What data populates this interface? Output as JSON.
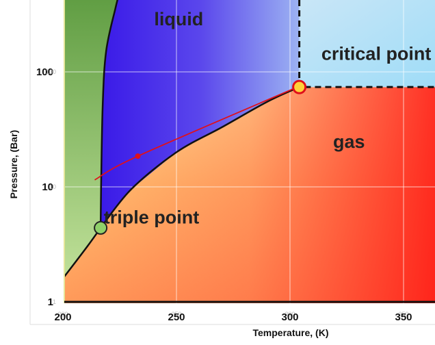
{
  "chart_data": {
    "type": "line",
    "title": "",
    "xlabel": "Temperature, (K)",
    "ylabel": "Pressure, (Bar)",
    "x_scale": "linear",
    "y_scale": "log",
    "xlim": [
      200,
      365
    ],
    "ylim": [
      1,
      500
    ],
    "x_ticks": [
      200,
      250,
      300,
      350
    ],
    "x_tick_labels": [
      "200",
      "250",
      "300",
      "350"
    ],
    "y_ticks": [
      1,
      10,
      100
    ],
    "y_tick_labels": [
      "1",
      "10",
      "100"
    ],
    "grid": true,
    "series": [
      {
        "values": [
          [
            200,
            1.6
          ],
          [
            210,
            2.9
          ],
          [
            216.6,
            4.4
          ]
        ]
      },
      {
        "values": [
          [
            216.6,
            4.4
          ],
          [
            230,
            9.5
          ],
          [
            250,
            20
          ],
          [
            270,
            33
          ],
          [
            290,
            55
          ],
          [
            304.1,
            73.8
          ]
        ]
      },
      {
        "values": [
          [
            216.6,
            4.4
          ],
          [
            216.8,
            10
          ],
          [
            217.5,
            50
          ],
          [
            219,
            150
          ],
          [
            223,
            350
          ],
          [
            225,
            500
          ]
        ]
      },
      {
        "values": [
          [
            214,
            11.5
          ],
          [
            233,
            18.5
          ],
          [
            302,
            72
          ]
        ]
      }
    ],
    "points": [
      {
        "label": "triple point",
        "x": 216.6,
        "y": 4.4,
        "color": "#8fd16a"
      },
      {
        "label": "critical point",
        "x": 304.1,
        "y": 73.8,
        "color": "#ffd23a"
      },
      {
        "x": 233,
        "y": 18.5,
        "color": "#e0101a"
      }
    ],
    "regions": [
      {
        "label": "liquid",
        "x": 251,
        "y": 280
      },
      {
        "label": "critical point",
        "x": 338,
        "y": 140
      },
      {
        "label": "gas",
        "x": 326,
        "y": 24
      },
      {
        "label": "triple point",
        "x": 239,
        "y": 5.3
      }
    ],
    "critical_box": {
      "x": [
        304.1,
        365
      ],
      "y": [
        73.8,
        500
      ]
    },
    "colors": {
      "solid": "#6aa84f",
      "liquid": "#4b2bea",
      "supercritical": "#a7dcf5",
      "gas_top": "#ffe08a",
      "gas_bottom": "#ff3030",
      "boundary": "#111111",
      "path": "#e0101a"
    }
  }
}
